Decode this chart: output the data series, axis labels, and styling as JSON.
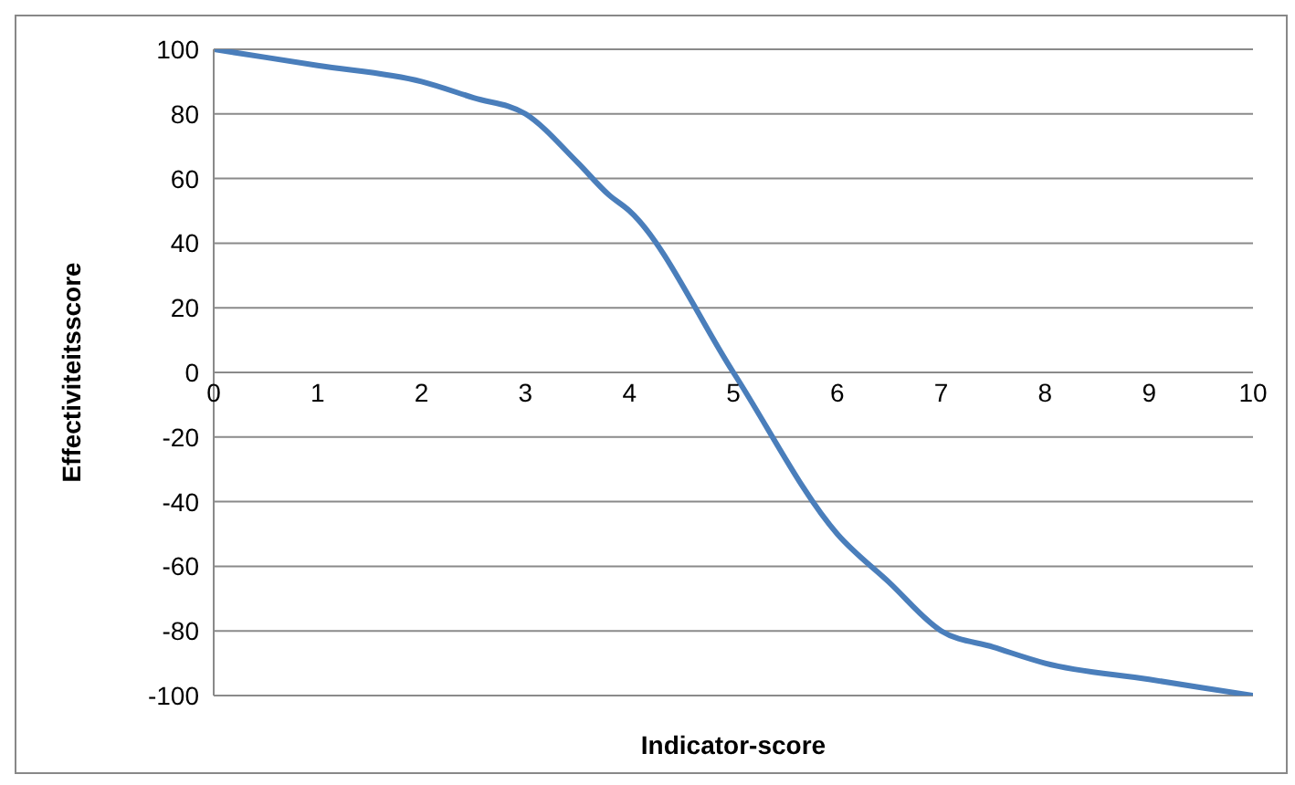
{
  "chart_data": {
    "type": "line",
    "xlabel": "Indicator-score",
    "ylabel": "Effectiviteitsscore",
    "x": [
      0,
      1,
      2,
      2.5,
      3,
      3.5,
      3.8,
      4,
      5,
      6,
      6.5,
      7,
      7.5,
      8,
      9,
      10
    ],
    "series": [
      {
        "color": "#4a7ebb",
        "values": [
          100,
          95,
          90,
          85,
          80,
          65,
          55,
          50,
          0,
          -50,
          -65,
          -80,
          -85,
          -90,
          -95,
          -100
        ]
      }
    ],
    "xlim": [
      0,
      10
    ],
    "xticks": [
      0,
      1,
      2,
      3,
      4,
      5,
      6,
      7,
      8,
      9,
      10
    ],
    "ylim": [
      -100,
      100
    ],
    "yticks": [
      -100,
      -80,
      -60,
      -40,
      -20,
      0,
      20,
      40,
      60,
      80,
      100
    ],
    "grid": "y",
    "legend": false,
    "marker": "none"
  }
}
